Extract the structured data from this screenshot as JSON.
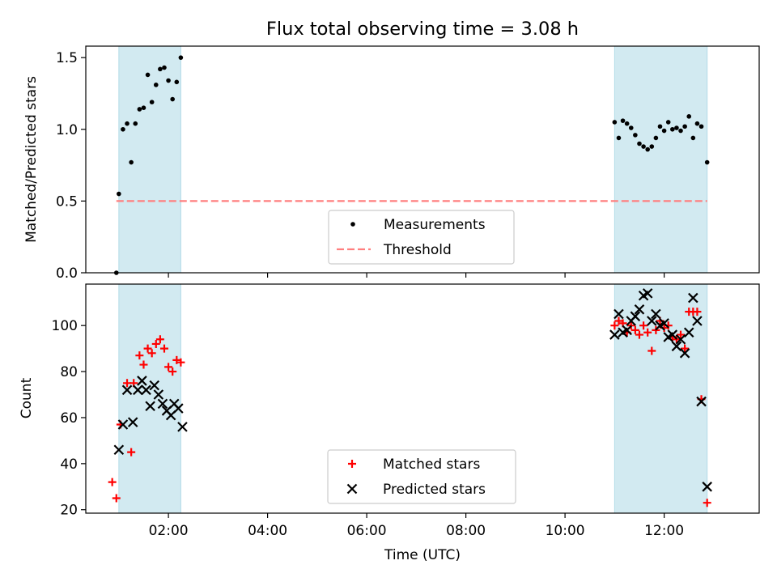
{
  "title": "Flux total observing time = 3.08 h",
  "chart_data": [
    {
      "type": "scatter",
      "ylabel": "Matched/Predicted stars",
      "xlabel": "",
      "xlim": [
        "00:20",
        "13:55"
      ],
      "ylim": [
        0,
        1.58
      ],
      "yticks": [
        "0.0",
        "0.5",
        "1.0",
        "1.5"
      ],
      "xticks": [
        "02:00",
        "04:00",
        "06:00",
        "08:00",
        "10:00",
        "12:00"
      ],
      "xtick_labels_visible": false,
      "shaded_intervals": [
        [
          "01:00",
          "02:15"
        ],
        [
          "11:00",
          "12:52"
        ]
      ],
      "shade_color": "#add8e6",
      "threshold": {
        "name": "Threshold",
        "value": 0.5,
        "x_start": "00:57",
        "x_end": "12:52",
        "color": "#ff7f7f",
        "style": "dashed"
      },
      "legend": {
        "position": "lower center",
        "entries": [
          "Measurements",
          "Threshold"
        ]
      },
      "series": [
        {
          "name": "Measurements",
          "marker": "dot",
          "color": "#000000",
          "points": [
            [
              "00:57",
              0.0
            ],
            [
              "01:00",
              0.55
            ],
            [
              "01:05",
              1.0
            ],
            [
              "01:10",
              1.04
            ],
            [
              "01:15",
              0.77
            ],
            [
              "01:20",
              1.04
            ],
            [
              "01:25",
              1.14
            ],
            [
              "01:30",
              1.15
            ],
            [
              "01:35",
              1.38
            ],
            [
              "01:40",
              1.19
            ],
            [
              "01:45",
              1.31
            ],
            [
              "01:50",
              1.42
            ],
            [
              "01:55",
              1.43
            ],
            [
              "02:00",
              1.34
            ],
            [
              "02:05",
              1.21
            ],
            [
              "02:10",
              1.33
            ],
            [
              "02:15",
              1.5
            ],
            [
              "11:00",
              1.05
            ],
            [
              "11:05",
              0.94
            ],
            [
              "11:10",
              1.06
            ],
            [
              "11:15",
              1.04
            ],
            [
              "11:20",
              1.01
            ],
            [
              "11:25",
              0.96
            ],
            [
              "11:30",
              0.9
            ],
            [
              "11:35",
              0.88
            ],
            [
              "11:40",
              0.86
            ],
            [
              "11:45",
              0.88
            ],
            [
              "11:50",
              0.94
            ],
            [
              "11:55",
              1.02
            ],
            [
              "12:00",
              0.99
            ],
            [
              "12:05",
              1.05
            ],
            [
              "12:10",
              1.0
            ],
            [
              "12:15",
              1.01
            ],
            [
              "12:20",
              0.99
            ],
            [
              "12:25",
              1.02
            ],
            [
              "12:30",
              1.09
            ],
            [
              "12:35",
              0.94
            ],
            [
              "12:40",
              1.04
            ],
            [
              "12:45",
              1.02
            ],
            [
              "12:52",
              0.77
            ]
          ]
        }
      ]
    },
    {
      "type": "scatter",
      "ylabel": "Count",
      "xlabel": "Time (UTC)",
      "xlim": [
        "00:20",
        "13:55"
      ],
      "ylim": [
        18.5,
        118
      ],
      "yticks": [
        "20",
        "40",
        "60",
        "80",
        "100"
      ],
      "xticks": [
        "02:00",
        "04:00",
        "06:00",
        "08:00",
        "10:00",
        "12:00"
      ],
      "shaded_intervals": [
        [
          "01:00",
          "02:15"
        ],
        [
          "11:00",
          "12:52"
        ]
      ],
      "shade_color": "#add8e6",
      "legend": {
        "position": "lower center",
        "entries": [
          "Matched stars",
          "Predicted stars"
        ]
      },
      "series": [
        {
          "name": "Matched stars",
          "marker": "plus",
          "color": "#ff0000",
          "points": [
            [
              "00:52",
              32
            ],
            [
              "00:57",
              25
            ],
            [
              "01:02",
              57
            ],
            [
              "01:10",
              75
            ],
            [
              "01:15",
              45
            ],
            [
              "01:18",
              75
            ],
            [
              "01:25",
              87
            ],
            [
              "01:30",
              83
            ],
            [
              "01:35",
              90
            ],
            [
              "01:40",
              88
            ],
            [
              "01:45",
              92
            ],
            [
              "01:50",
              94
            ],
            [
              "01:55",
              90
            ],
            [
              "02:00",
              82
            ],
            [
              "02:05",
              80
            ],
            [
              "02:10",
              85
            ],
            [
              "02:15",
              84
            ],
            [
              "11:00",
              100
            ],
            [
              "11:05",
              102
            ],
            [
              "11:10",
              101
            ],
            [
              "11:15",
              97
            ],
            [
              "11:20",
              100
            ],
            [
              "11:25",
              98
            ],
            [
              "11:30",
              96
            ],
            [
              "11:35",
              100
            ],
            [
              "11:40",
              97
            ],
            [
              "11:45",
              89
            ],
            [
              "11:50",
              98
            ],
            [
              "11:55",
              102
            ],
            [
              "12:00",
              99
            ],
            [
              "12:05",
              100
            ],
            [
              "12:10",
              95
            ],
            [
              "12:15",
              94
            ],
            [
              "12:20",
              96
            ],
            [
              "12:25",
              90
            ],
            [
              "12:30",
              106
            ],
            [
              "12:35",
              106
            ],
            [
              "12:40",
              106
            ],
            [
              "12:45",
              68
            ],
            [
              "12:52",
              23
            ]
          ]
        },
        {
          "name": "Predicted stars",
          "marker": "x",
          "color": "#000000",
          "points": [
            [
              "01:00",
              46
            ],
            [
              "01:05",
              57
            ],
            [
              "01:10",
              72
            ],
            [
              "01:17",
              58
            ],
            [
              "01:23",
              72
            ],
            [
              "01:28",
              76
            ],
            [
              "01:33",
              72
            ],
            [
              "01:38",
              65
            ],
            [
              "01:43",
              74
            ],
            [
              "01:48",
              70
            ],
            [
              "01:53",
              66
            ],
            [
              "01:58",
              63
            ],
            [
              "02:03",
              61
            ],
            [
              "02:07",
              66
            ],
            [
              "02:12",
              64
            ],
            [
              "02:17",
              56
            ],
            [
              "11:00",
              96
            ],
            [
              "11:05",
              105
            ],
            [
              "11:10",
              97
            ],
            [
              "11:15",
              98
            ],
            [
              "11:20",
              102
            ],
            [
              "11:25",
              104
            ],
            [
              "11:30",
              107
            ],
            [
              "11:35",
              113
            ],
            [
              "11:40",
              114
            ],
            [
              "11:45",
              102
            ],
            [
              "11:50",
              105
            ],
            [
              "11:55",
              100
            ],
            [
              "12:00",
              101
            ],
            [
              "12:05",
              95
            ],
            [
              "12:10",
              96
            ],
            [
              "12:15",
              91
            ],
            [
              "12:20",
              94
            ],
            [
              "12:25",
              88
            ],
            [
              "12:30",
              97
            ],
            [
              "12:35",
              112
            ],
            [
              "12:40",
              102
            ],
            [
              "12:45",
              67
            ],
            [
              "12:52",
              30
            ]
          ]
        }
      ]
    }
  ]
}
